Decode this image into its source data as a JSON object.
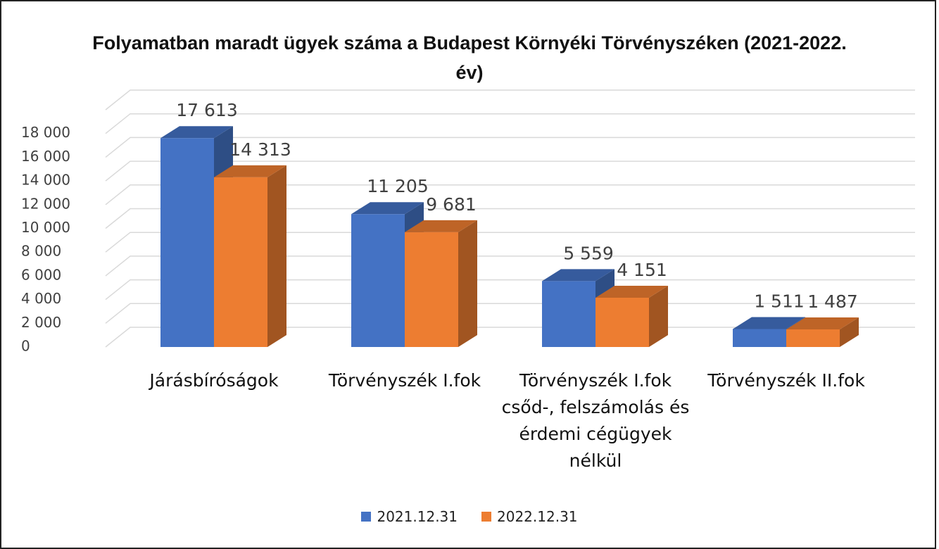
{
  "chart_data": {
    "type": "bar3d",
    "title": "Folyamatban maradt ügyek száma a Budapest Környéki Törvényszéken (2021-2022. év)",
    "categories": [
      "Járásbíróságok",
      "Törvényszék I.fok",
      "Törvényszék I.fok csőd-, felszámolás és érdemi cégügyek nélkül",
      "Törvényszék II.fok"
    ],
    "series": [
      {
        "name": "2021.12.31",
        "color": "#4472c4",
        "values": [
          17613,
          11205,
          5559,
          1511
        ],
        "value_labels": [
          "17 613",
          "11 205",
          "5 559",
          "1 511"
        ]
      },
      {
        "name": "2022.12.31",
        "color": "#ed7d31",
        "values": [
          14313,
          9681,
          4151,
          1487
        ],
        "value_labels": [
          "14 313",
          "9 681",
          "4 151",
          "1 487"
        ]
      }
    ],
    "ylim": [
      0,
      20000
    ],
    "yticks": [
      0,
      {
        "value": 2000,
        "label": "2 000"
      },
      {
        "value": 4000,
        "label": "4 000"
      },
      {
        "value": 6000,
        "label": "6 000"
      },
      {
        "value": 8000,
        "label": "8 000"
      },
      {
        "value": 10000,
        "label": "10 000"
      },
      {
        "value": 12000,
        "label": "12 000"
      },
      {
        "value": 14000,
        "label": "14 000"
      },
      {
        "value": 16000,
        "label": "16 000"
      },
      {
        "value": 18000,
        "label": "18 000"
      }
    ],
    "grid": true,
    "legend": "bottom"
  }
}
